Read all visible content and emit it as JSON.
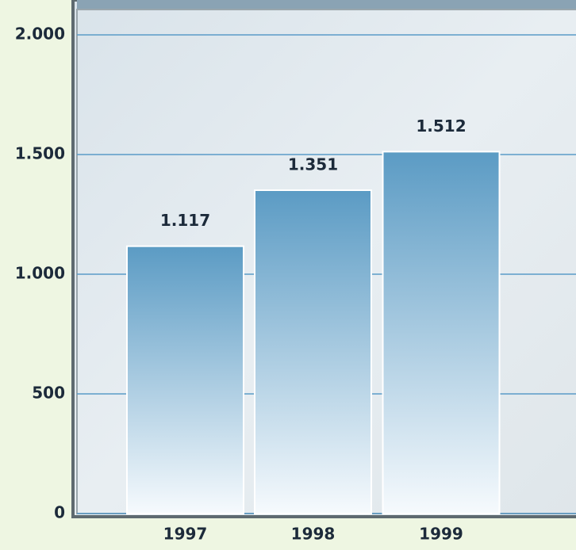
{
  "chart_data": {
    "type": "bar",
    "categories": [
      "1997",
      "1998",
      "1999"
    ],
    "values": [
      1117,
      1351,
      1512
    ],
    "value_labels": [
      "1.117",
      "1.351",
      "1.512"
    ],
    "color": "#5b9bc4",
    "ylim": [
      0,
      2000
    ],
    "yticks": [
      0,
      500,
      {
        "value": 1000,
        "label": "1.000"
      },
      {
        "value": 1500,
        "label": "1.500"
      },
      {
        "value": 2000,
        "label": "2.000"
      }
    ],
    "grid": true
  }
}
